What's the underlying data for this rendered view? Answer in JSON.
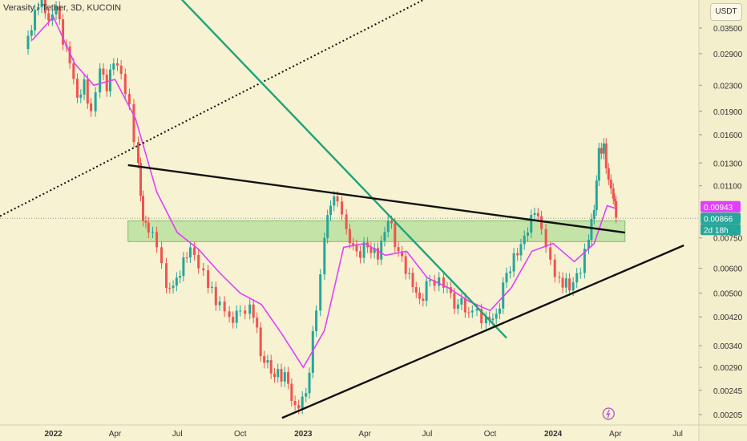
{
  "header": {
    "title": "Verasity / Tether, 3D, KUCOIN"
  },
  "toolbar": {
    "unit_label": "USDT"
  },
  "colors": {
    "background": "#f6f2d2",
    "up": "#26a69a",
    "down": "#ef5350",
    "ma": "#e040fb",
    "trendline": "#111111",
    "green_line": "#1fa37a",
    "zone_fill": "#a3d98a",
    "price_badge": "#e040fb",
    "last_badge": "#26a69a"
  },
  "chart_data": {
    "type": "candlestick",
    "scale": "log",
    "x_tick_labels": [
      "2022",
      "Apr",
      "Jul",
      "Oct",
      "2023",
      "Apr",
      "Jul",
      "Oct",
      "2024",
      "Apr",
      "Jul"
    ],
    "y_tick_labels": [
      "0.03500",
      "0.02900",
      "0.02300",
      "0.01900",
      "0.01600",
      "0.01300",
      "0.01100",
      "0.00750",
      "0.00600",
      "0.00500",
      "0.00420",
      "0.00340",
      "0.00290",
      "0.00245",
      "0.00205"
    ],
    "y_ticks": [
      0.035,
      0.029,
      0.023,
      0.019,
      0.016,
      0.013,
      0.011,
      0.0075,
      0.006,
      0.005,
      0.0042,
      0.0034,
      0.0029,
      0.00245,
      0.00205
    ],
    "x_ticks": [
      "2022-01-01",
      "2022-04-01",
      "2022-07-01",
      "2022-10-01",
      "2023-01-01",
      "2023-04-01",
      "2023-07-01",
      "2023-10-01",
      "2024-01-01",
      "2024-04-01",
      "2024-07-01"
    ],
    "price_labels": [
      {
        "value": 0.00943,
        "text": "0.00943",
        "kind": "price"
      },
      {
        "value": 0.00866,
        "text": "0.00866",
        "kind": "last",
        "sub": "2d 18h"
      }
    ],
    "closes": [
      [
        "2021-11-20",
        0.03
      ],
      [
        "2021-12-05",
        0.04
      ],
      [
        "2021-12-15",
        0.046
      ],
      [
        "2021-12-25",
        0.037
      ],
      [
        "2022-01-05",
        0.041
      ],
      [
        "2022-01-15",
        0.031
      ],
      [
        "2022-01-25",
        0.027
      ],
      [
        "2022-02-05",
        0.021
      ],
      [
        "2022-02-15",
        0.024
      ],
      [
        "2022-02-25",
        0.019
      ],
      [
        "2022-03-10",
        0.026
      ],
      [
        "2022-03-20",
        0.022
      ],
      [
        "2022-03-30",
        0.027
      ],
      [
        "2022-04-10",
        0.025
      ],
      [
        "2022-04-22",
        0.02
      ],
      [
        "2022-05-05",
        0.013
      ],
      [
        "2022-05-12",
        0.0085
      ],
      [
        "2022-05-20",
        0.0078
      ],
      [
        "2022-06-01",
        0.007
      ],
      [
        "2022-06-15",
        0.0052
      ],
      [
        "2022-06-30",
        0.0056
      ],
      [
        "2022-07-10",
        0.0065
      ],
      [
        "2022-07-20",
        0.007
      ],
      [
        "2022-08-01",
        0.006
      ],
      [
        "2022-08-15",
        0.0052
      ],
      [
        "2022-09-01",
        0.0047
      ],
      [
        "2022-09-15",
        0.0042
      ],
      [
        "2022-10-01",
        0.0044
      ],
      [
        "2022-10-15",
        0.0046
      ],
      [
        "2022-11-05",
        0.003
      ],
      [
        "2022-11-20",
        0.0027
      ],
      [
        "2022-12-05",
        0.0028
      ],
      [
        "2022-12-20",
        0.0022
      ],
      [
        "2023-01-05",
        0.0024
      ],
      [
        "2023-01-20",
        0.0044
      ],
      [
        "2023-02-01",
        0.0075
      ],
      [
        "2023-02-10",
        0.0095
      ],
      [
        "2023-02-20",
        0.0098
      ],
      [
        "2023-03-05",
        0.008
      ],
      [
        "2023-03-20",
        0.0068
      ],
      [
        "2023-04-05",
        0.007
      ],
      [
        "2023-04-20",
        0.0064
      ],
      [
        "2023-05-05",
        0.0085
      ],
      [
        "2023-05-20",
        0.0068
      ],
      [
        "2023-06-05",
        0.0058
      ],
      [
        "2023-06-20",
        0.0048
      ],
      [
        "2023-07-05",
        0.0055
      ],
      [
        "2023-07-25",
        0.0052
      ],
      [
        "2023-08-15",
        0.0046
      ],
      [
        "2023-09-05",
        0.0044
      ],
      [
        "2023-09-25",
        0.0042
      ],
      [
        "2023-10-10",
        0.0043
      ],
      [
        "2023-10-25",
        0.0058
      ],
      [
        "2023-11-10",
        0.0066
      ],
      [
        "2023-11-25",
        0.0078
      ],
      [
        "2023-12-05",
        0.009
      ],
      [
        "2023-12-15",
        0.008
      ],
      [
        "2023-12-28",
        0.0064
      ],
      [
        "2024-01-10",
        0.0056
      ],
      [
        "2024-01-25",
        0.0051
      ],
      [
        "2024-02-10",
        0.0058
      ],
      [
        "2024-02-22",
        0.0074
      ],
      [
        "2024-03-01",
        0.0092
      ],
      [
        "2024-03-08",
        0.0145
      ],
      [
        "2024-03-15",
        0.015
      ],
      [
        "2024-03-22",
        0.0115
      ],
      [
        "2024-03-29",
        0.01
      ],
      [
        "2024-04-02",
        0.0087
      ]
    ],
    "moving_average": [
      [
        "2021-12-01",
        0.032
      ],
      [
        "2022-01-01",
        0.038
      ],
      [
        "2022-02-01",
        0.027
      ],
      [
        "2022-03-01",
        0.023
      ],
      [
        "2022-04-01",
        0.024
      ],
      [
        "2022-05-01",
        0.018
      ],
      [
        "2022-06-01",
        0.0105
      ],
      [
        "2022-07-01",
        0.0078
      ],
      [
        "2022-08-01",
        0.0069
      ],
      [
        "2022-09-01",
        0.0058
      ],
      [
        "2022-10-01",
        0.005
      ],
      [
        "2022-11-01",
        0.0046
      ],
      [
        "2022-12-01",
        0.0037
      ],
      [
        "2023-01-01",
        0.0029
      ],
      [
        "2023-02-01",
        0.0038
      ],
      [
        "2023-03-01",
        0.007
      ],
      [
        "2023-04-01",
        0.0072
      ],
      [
        "2023-05-01",
        0.0066
      ],
      [
        "2023-06-01",
        0.0068
      ],
      [
        "2023-07-01",
        0.0056
      ],
      [
        "2023-08-01",
        0.0052
      ],
      [
        "2023-09-01",
        0.0047
      ],
      [
        "2023-10-01",
        0.0044
      ],
      [
        "2023-11-01",
        0.0052
      ],
      [
        "2023-12-01",
        0.0068
      ],
      [
        "2024-01-01",
        0.0072
      ],
      [
        "2024-02-01",
        0.0063
      ],
      [
        "2024-03-01",
        0.0072
      ],
      [
        "2024-03-20",
        0.0095
      ],
      [
        "2024-04-02",
        0.0093
      ]
    ],
    "drawings": [
      {
        "name": "dotted-trendline",
        "style": "dotted",
        "color": "#111111",
        "from": [
          "2021-10-15",
          0.0088
        ],
        "to": [
          "2024-01-01",
          0.07
        ]
      },
      {
        "name": "green-downtrend-line",
        "style": "solid",
        "color": "#1fa37a",
        "from": [
          "2022-01-28",
          0.1
        ],
        "to": [
          "2023-10-25",
          0.0036
        ]
      },
      {
        "name": "descending-resistance-line",
        "style": "solid",
        "color": "#111111",
        "from": [
          "2022-04-20",
          0.0128
        ],
        "to": [
          "2024-04-15",
          0.0078
        ]
      },
      {
        "name": "ascending-support-line",
        "style": "solid",
        "color": "#111111",
        "from": [
          "2022-12-01",
          0.002
        ],
        "to": [
          "2024-07-10",
          0.0071
        ]
      }
    ],
    "zone": {
      "name": "support-zone",
      "from": "2022-04-20",
      "to": "2024-04-15",
      "low": 0.0073,
      "high": 0.0085
    }
  }
}
